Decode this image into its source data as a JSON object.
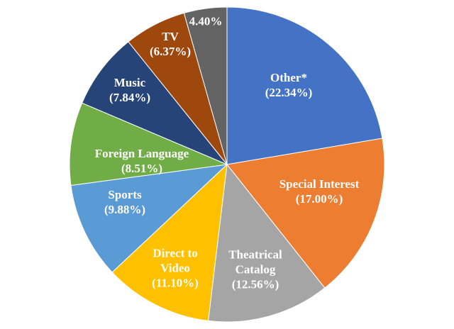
{
  "chart_data": {
    "type": "pie",
    "categories": [
      "Other*",
      "Special Interest",
      "Theatrical Catalog",
      "Direct to Video",
      "Sports",
      "Foreign Language",
      "Music",
      "TV",
      null
    ],
    "values": [
      22.34,
      17.0,
      12.56,
      11.1,
      9.88,
      8.51,
      7.84,
      6.37,
      4.4
    ],
    "value_labels": [
      "(22.34%)",
      "(17.00%)",
      "(12.56%)",
      "(11.10%)",
      "(9.88%)",
      "(8.51%)",
      "(7.84%)",
      "(6.37%)",
      "4.40%"
    ],
    "colors": [
      "#4472c4",
      "#ed7d31",
      "#a5a5a5",
      "#ffc000",
      "#5b9bd5",
      "#70ad47",
      "#264478",
      "#9e480e",
      "#636363"
    ]
  }
}
